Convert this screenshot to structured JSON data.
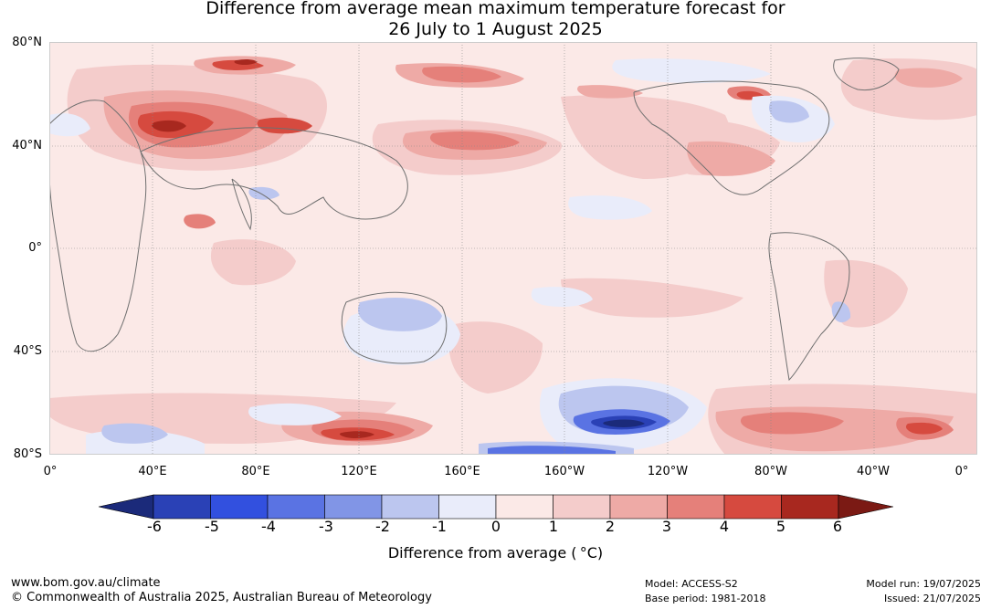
{
  "title": {
    "line1": "Difference from average mean maximum temperature forecast for",
    "line2": "26 July to 1 August 2025"
  },
  "map": {
    "latitude_labels": [
      "80°N",
      "40°N",
      "0°",
      "40°S",
      "80°S"
    ],
    "longitude_labels": [
      "0°",
      "40°E",
      "80°E",
      "120°E",
      "160°E",
      "160°W",
      "120°W",
      "80°W",
      "40°W",
      "0°"
    ],
    "colors": {
      "ocean_base": "#fbe9e7",
      "land_outline": "#707070",
      "grid": "#888888"
    }
  },
  "legend": {
    "title": "Difference from average ( °C)",
    "tick_labels": [
      "-6",
      "-5",
      "-4",
      "-3",
      "-2",
      "-1",
      "0",
      "1",
      "2",
      "3",
      "4",
      "5",
      "6"
    ],
    "colors": [
      "#1b2a7a",
      "#2a41b6",
      "#3250df",
      "#5a73e3",
      "#8195e6",
      "#bcc6ef",
      "#e9ecfa",
      "#fbe9e7",
      "#f4cccb",
      "#eeaaa6",
      "#e5807a",
      "#d64a3f",
      "#a8281f",
      "#7b1a14"
    ]
  },
  "footer": {
    "website": "www.bom.gov.au/climate",
    "copyright": "© Commonwealth of Australia 2025, Australian Bureau of Meteorology",
    "model": "Model: ACCESS-S2",
    "base_period": "Base period: 1981-2018",
    "model_run": "Model run: 19/07/2025",
    "issued": "Issued: 21/07/2025"
  }
}
